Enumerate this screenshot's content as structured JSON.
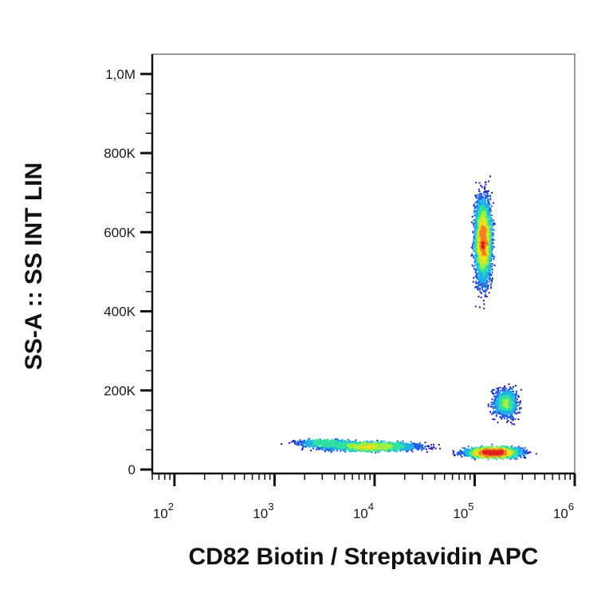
{
  "chart_data": {
    "type": "scatter",
    "style": "density-dot-plot",
    "xlabel": "CD82 Biotin / Streptavidin APC",
    "ylabel": "SS-A :: SS INT LIN",
    "x_scale": "log",
    "y_scale": "linear",
    "xlim": [
      60,
      1000000
    ],
    "ylim": [
      -10000,
      1050000
    ],
    "x_ticks": [
      {
        "value": 100,
        "base": "10",
        "exp": "2"
      },
      {
        "value": 1000,
        "base": "10",
        "exp": "3"
      },
      {
        "value": 10000,
        "base": "10",
        "exp": "4"
      },
      {
        "value": 100000,
        "base": "10",
        "exp": "5"
      },
      {
        "value": 1000000,
        "base": "10",
        "exp": "6"
      }
    ],
    "y_ticks": [
      {
        "value": 0,
        "label": "0"
      },
      {
        "value": 200000,
        "label": "200K"
      },
      {
        "value": 400000,
        "label": "400K"
      },
      {
        "value": 600000,
        "label": "600K"
      },
      {
        "value": 800000,
        "label": "800K"
      },
      {
        "value": 1000000,
        "label": "1,0M"
      }
    ],
    "populations": [
      {
        "center_x": 120000,
        "center_y": 580000,
        "spread_x_log10": 0.09,
        "spread_y": 120000,
        "count": 5200
      },
      {
        "center_x": 200000,
        "center_y": 170000,
        "spread_x_log10": 0.14,
        "spread_y": 40000,
        "count": 1100
      },
      {
        "center_x": 150000,
        "center_y": 45000,
        "spread_x_log10": 0.32,
        "spread_y": 14000,
        "count": 3600
      },
      {
        "center_x": 9000,
        "center_y": 60000,
        "spread_x_log10": 0.55,
        "spread_y": 12000,
        "count": 2600
      },
      {
        "center_x": 3000,
        "center_y": 70000,
        "spread_x_log10": 0.3,
        "spread_y": 8000,
        "count": 700
      }
    ],
    "density_colors": [
      "#1a1aa8",
      "#2060e0",
      "#20b0e8",
      "#30e0a0",
      "#a0f040",
      "#f0e020",
      "#f08020",
      "#e02020"
    ],
    "grid": false,
    "legend": "none"
  }
}
